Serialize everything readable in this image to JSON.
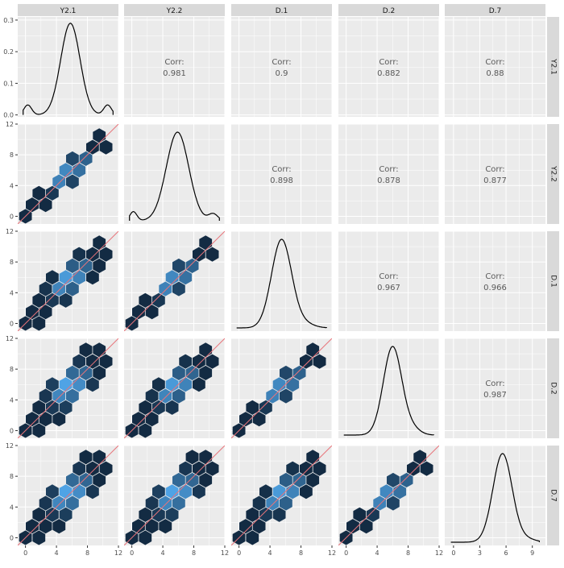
{
  "chart_data": {
    "type": "scatterplot-matrix",
    "variables": [
      "Y2.1",
      "Y2.2",
      "D.1",
      "D.2",
      "D.7"
    ],
    "correlations": [
      {
        "row": "Y2.1",
        "col": "Y2.2",
        "label": "Corr:",
        "value": "0.981"
      },
      {
        "row": "Y2.1",
        "col": "D.1",
        "label": "Corr:",
        "value": "0.9"
      },
      {
        "row": "Y2.1",
        "col": "D.2",
        "label": "Corr:",
        "value": "0.882"
      },
      {
        "row": "Y2.1",
        "col": "D.7",
        "label": "Corr:",
        "value": "0.88"
      },
      {
        "row": "Y2.2",
        "col": "D.1",
        "label": "Corr:",
        "value": "0.898"
      },
      {
        "row": "Y2.2",
        "col": "D.2",
        "label": "Corr:",
        "value": "0.878"
      },
      {
        "row": "Y2.2",
        "col": "D.7",
        "label": "Corr:",
        "value": "0.877"
      },
      {
        "row": "D.1",
        "col": "D.2",
        "label": "Corr:",
        "value": "0.967"
      },
      {
        "row": "D.1",
        "col": "D.7",
        "label": "Corr:",
        "value": "0.966"
      },
      {
        "row": "D.2",
        "col": "D.7",
        "label": "Corr:",
        "value": "0.987"
      }
    ],
    "diagonal": "density",
    "lower": "hexbin",
    "reference_line": "y = x",
    "x_ranges": [
      [
        -1,
        12
      ],
      [
        -1,
        12
      ],
      [
        -1,
        12
      ],
      [
        -1,
        12
      ],
      [
        -1,
        10.5
      ]
    ],
    "x_ticks": [
      [
        0,
        4,
        8,
        12
      ],
      [
        0,
        4,
        8,
        12
      ],
      [
        0,
        4,
        8,
        12
      ],
      [
        0,
        4,
        8,
        12
      ],
      [
        0,
        3,
        6,
        9
      ]
    ],
    "y_ranges": [
      [
        -0.006,
        0.31
      ],
      [
        -1,
        12
      ],
      [
        -1,
        12
      ],
      [
        -1,
        12
      ],
      [
        -1,
        12
      ]
    ],
    "y_ticks": [
      [
        "0.0",
        "0.1",
        "0.2",
        "0.3"
      ],
      [
        "0",
        "4",
        "8",
        "12"
      ],
      [
        "0",
        "4",
        "8",
        "12"
      ],
      [
        "0",
        "4",
        "8",
        "12"
      ],
      [
        "0",
        "4",
        "8",
        "12"
      ]
    ],
    "grid": true,
    "colors": {
      "panel_bg": "#ebebeb",
      "grid": "#ffffff",
      "strip_bg": "#d9d9d9",
      "density_line": "#000000",
      "reference_line": "#e8747a",
      "hex_low": "#132b43",
      "hex_high": "#56b1f7",
      "corr_text": "#595959"
    }
  }
}
